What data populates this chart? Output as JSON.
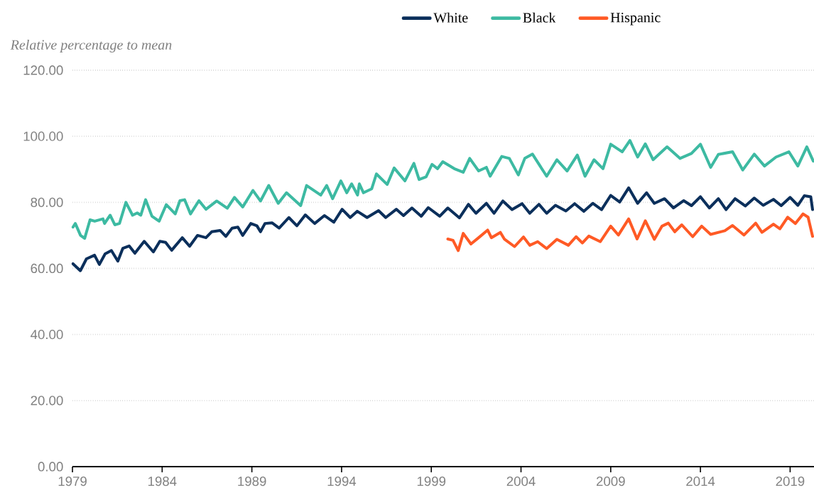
{
  "chart_data": {
    "type": "line",
    "ylabel": "Relative percentage to mean",
    "legend": "top",
    "grid": "y",
    "xlim": [
      1979,
      2020.33
    ],
    "xticks": [
      1979,
      1984,
      1989,
      1994,
      1999,
      2004,
      2009,
      2014,
      2019
    ],
    "ylim": [
      0,
      120
    ],
    "yticks": [
      {
        "value": 0,
        "label": "0.00"
      },
      {
        "value": 20,
        "label": "20.00"
      },
      {
        "value": 40,
        "label": "40.00"
      },
      {
        "value": 60,
        "label": "60.00"
      },
      {
        "value": 80,
        "label": "80.00"
      },
      {
        "value": 100,
        "label": "100.00"
      },
      {
        "value": 120,
        "label": "120.00"
      }
    ],
    "series": [
      {
        "name": "White",
        "color": "#0b2f5b",
        "x": [
          1979.03,
          1979.44,
          1979.78,
          1980.23,
          1980.5,
          1980.82,
          1981.17,
          1981.53,
          1981.81,
          1982.16,
          1982.48,
          1983.0,
          1983.51,
          1983.87,
          1984.19,
          1984.53,
          1985.12,
          1985.53,
          1985.97,
          1986.44,
          1986.76,
          1987.23,
          1987.55,
          1987.9,
          1988.22,
          1988.49,
          1988.94,
          1989.28,
          1989.48,
          1989.73,
          1990.12,
          1990.52,
          1991.06,
          1991.51,
          1991.98,
          1992.5,
          1993.04,
          1993.57,
          1994.03,
          1994.48,
          1994.87,
          1995.42,
          1996.06,
          1996.46,
          1997.05,
          1997.45,
          1997.92,
          1998.44,
          1998.83,
          1999.47,
          1999.92,
          2000.57,
          2001.07,
          2001.49,
          2002.07,
          2002.5,
          2002.99,
          2003.5,
          2004.06,
          2004.49,
          2005.0,
          2005.43,
          2005.92,
          2006.5,
          2006.99,
          2007.5,
          2008.0,
          2008.49,
          2009.0,
          2009.5,
          2010.0,
          2010.5,
          2011.0,
          2011.43,
          2012.0,
          2012.5,
          2013.07,
          2013.5,
          2014.0,
          2014.5,
          2015.0,
          2015.43,
          2015.93,
          2016.5,
          2017.0,
          2017.5,
          2018.07,
          2018.5,
          2019.0,
          2019.43,
          2019.79,
          2020.15,
          2020.25
        ],
        "values": [
          61.4,
          59.3,
          62.9,
          64.0,
          61.2,
          64.4,
          65.4,
          62.2,
          66.1,
          66.8,
          64.6,
          68.2,
          65.0,
          68.2,
          67.9,
          65.5,
          69.3,
          66.7,
          70.0,
          69.3,
          71.1,
          71.5,
          69.7,
          72.2,
          72.5,
          70.0,
          73.6,
          72.9,
          71.1,
          73.6,
          73.8,
          72.2,
          75.4,
          72.9,
          76.2,
          73.6,
          76.0,
          74.0,
          77.9,
          75.4,
          77.3,
          75.4,
          77.5,
          75.4,
          77.9,
          76.0,
          78.3,
          75.8,
          78.4,
          75.8,
          78.3,
          75.3,
          79.4,
          76.7,
          79.7,
          76.7,
          80.4,
          77.8,
          79.6,
          76.7,
          79.4,
          76.7,
          79.1,
          77.4,
          79.6,
          77.3,
          79.7,
          77.8,
          82.1,
          80.1,
          84.4,
          79.7,
          82.9,
          79.7,
          81.1,
          78.3,
          80.5,
          79.0,
          81.7,
          78.3,
          81.1,
          77.8,
          81.1,
          78.9,
          81.3,
          79.1,
          80.9,
          79.0,
          81.5,
          79.1,
          82.0,
          81.7,
          77.8
        ]
      },
      {
        "name": "Black",
        "color": "#3dbaa2",
        "x": [
          1979.03,
          1979.16,
          1979.45,
          1979.68,
          1979.98,
          1980.24,
          1980.7,
          1980.79,
          1981.1,
          1981.36,
          1981.62,
          1981.98,
          1982.35,
          1982.61,
          1982.81,
          1983.08,
          1983.43,
          1983.83,
          1984.23,
          1984.73,
          1984.99,
          1985.25,
          1985.58,
          1986.05,
          1986.44,
          1987.04,
          1987.63,
          1988.03,
          1988.49,
          1989.06,
          1989.48,
          1989.94,
          1990.47,
          1990.93,
          1991.72,
          1992.05,
          1992.84,
          1993.17,
          1993.5,
          1993.96,
          1994.29,
          1994.56,
          1994.89,
          1994.99,
          1995.22,
          1995.68,
          1995.94,
          1996.54,
          1996.93,
          1997.53,
          1998.03,
          1998.32,
          1998.71,
          1999.04,
          1999.35,
          1999.64,
          2000.28,
          2000.78,
          2001.14,
          2001.64,
          2002.07,
          2002.28,
          2002.93,
          2003.35,
          2003.85,
          2004.21,
          2004.64,
          2005.43,
          2006.0,
          2006.57,
          2007.14,
          2007.57,
          2008.07,
          2008.57,
          2009.0,
          2009.64,
          2010.07,
          2010.5,
          2010.93,
          2011.36,
          2012.14,
          2012.86,
          2013.5,
          2014.0,
          2014.57,
          2015.0,
          2015.79,
          2016.36,
          2017.0,
          2017.57,
          2018.21,
          2018.93,
          2019.43,
          2019.93,
          2020.29
        ],
        "values": [
          72.5,
          73.6,
          70.0,
          69.1,
          74.7,
          74.3,
          75.0,
          73.6,
          76.1,
          73.2,
          73.6,
          80.0,
          76.1,
          76.8,
          76.1,
          80.8,
          75.8,
          74.3,
          79.3,
          76.5,
          80.5,
          80.8,
          76.5,
          80.5,
          77.9,
          80.4,
          78.2,
          81.5,
          78.6,
          83.6,
          80.4,
          85.1,
          79.7,
          82.9,
          79.0,
          85.1,
          82.2,
          85.1,
          81.1,
          86.5,
          82.9,
          85.6,
          82.2,
          85.6,
          82.9,
          84.1,
          88.6,
          85.4,
          90.4,
          86.5,
          91.8,
          86.9,
          87.7,
          91.5,
          90.2,
          92.3,
          90.2,
          89.1,
          93.3,
          89.5,
          90.6,
          87.9,
          93.9,
          93.3,
          88.3,
          93.3,
          94.6,
          87.9,
          92.9,
          89.5,
          94.3,
          87.9,
          92.9,
          90.2,
          97.6,
          95.3,
          98.7,
          93.7,
          97.7,
          92.9,
          96.8,
          93.3,
          94.8,
          97.6,
          90.6,
          94.5,
          95.3,
          89.8,
          94.6,
          91.0,
          93.7,
          95.3,
          91.0,
          96.8,
          92.5
        ]
      },
      {
        "name": "Hispanic",
        "color": "#ff5a25",
        "x": [
          1999.92,
          2000.21,
          2000.5,
          2000.78,
          2001.21,
          2001.64,
          2002.14,
          2002.35,
          2002.85,
          2003.07,
          2003.64,
          2004.14,
          2004.49,
          2004.93,
          2005.43,
          2006.0,
          2006.64,
          2007.07,
          2007.42,
          2007.78,
          2008.42,
          2009.0,
          2009.43,
          2010.0,
          2010.47,
          2010.93,
          2011.43,
          2011.86,
          2012.21,
          2012.57,
          2012.96,
          2013.57,
          2014.07,
          2014.57,
          2015.36,
          2015.79,
          2016.43,
          2017.08,
          2017.43,
          2018.07,
          2018.43,
          2018.86,
          2019.29,
          2019.72,
          2020.0,
          2020.25
        ],
        "values": [
          68.9,
          68.5,
          65.4,
          70.6,
          67.4,
          69.3,
          71.6,
          69.3,
          70.9,
          68.9,
          66.6,
          69.5,
          67.0,
          68.1,
          66.0,
          68.8,
          67.0,
          69.6,
          67.7,
          69.8,
          68.1,
          72.8,
          70.1,
          75.0,
          68.9,
          74.4,
          68.8,
          72.8,
          73.7,
          71.1,
          73.2,
          69.6,
          72.8,
          70.3,
          71.4,
          73.0,
          70.1,
          73.7,
          70.9,
          73.4,
          72.0,
          75.5,
          73.6,
          76.5,
          75.5,
          69.7
        ]
      }
    ]
  }
}
